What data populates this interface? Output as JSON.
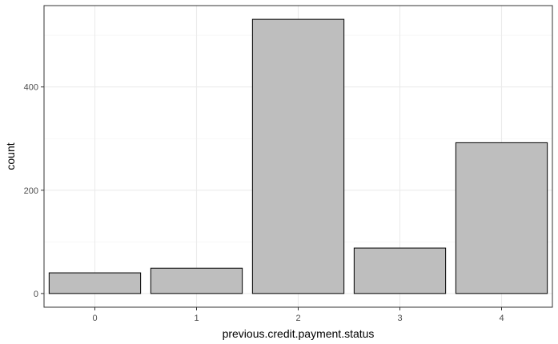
{
  "chart_data": {
    "type": "bar",
    "categories": [
      "0",
      "1",
      "2",
      "3",
      "4"
    ],
    "values": [
      40,
      49,
      531,
      88,
      292
    ],
    "xlabel": "previous.credit.payment.status",
    "ylabel": "count",
    "ylim": [
      -26.55,
      557.55
    ],
    "yticks": [
      0,
      200,
      400
    ],
    "ytick_labels": [
      "0",
      "200",
      "400"
    ],
    "grid": true,
    "colors": {
      "bar_fill": "#bebebe",
      "bar_stroke": "#000000",
      "grid_major": "#ebebeb",
      "grid_minor": "#f5f5f5",
      "panel_border": "#333333",
      "tick_text": "#4d4d4d"
    }
  }
}
